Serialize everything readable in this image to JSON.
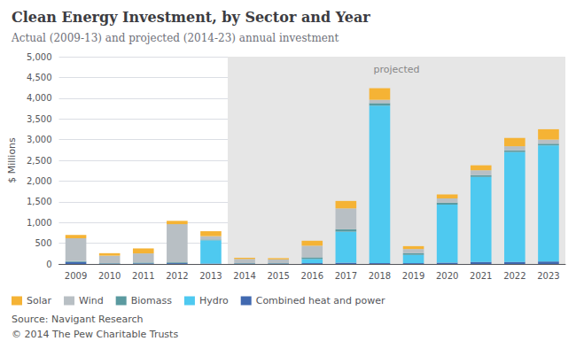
{
  "chart_data": {
    "type": "bar",
    "stacked": true,
    "title": "Clean Energy Investment, by Sector and Year",
    "subtitle": "Actual (2009-13) and projected (2014-23) annual investment",
    "ylabel": "$ Millions",
    "categories": [
      "2009",
      "2010",
      "2011",
      "2012",
      "2013",
      "2014",
      "2015",
      "2016",
      "2017",
      "2018",
      "2019",
      "2020",
      "2021",
      "2022",
      "2023"
    ],
    "series": [
      {
        "name": "Solar",
        "color": "#f5b335",
        "values": [
          80,
          60,
          120,
          80,
          120,
          30,
          30,
          120,
          180,
          280,
          70,
          100,
          120,
          200,
          250
        ]
      },
      {
        "name": "Wind",
        "color": "#b8bfc4",
        "values": [
          550,
          180,
          220,
          920,
          80,
          100,
          90,
          280,
          500,
          80,
          100,
          100,
          120,
          100,
          100
        ]
      },
      {
        "name": "Biomass",
        "color": "#5b9aa0",
        "values": [
          20,
          10,
          20,
          20,
          20,
          10,
          10,
          40,
          60,
          60,
          40,
          50,
          40,
          40,
          40
        ]
      },
      {
        "name": "Hydro",
        "color": "#4ec9f0",
        "values": [
          0,
          0,
          0,
          0,
          560,
          0,
          0,
          100,
          750,
          3800,
          200,
          1400,
          2050,
          2650,
          2800
        ]
      },
      {
        "name": "Combined heat and power",
        "color": "#4169b0",
        "values": [
          50,
          10,
          15,
          20,
          10,
          10,
          10,
          20,
          30,
          20,
          20,
          30,
          50,
          50,
          60
        ]
      }
    ],
    "ylim": [
      0,
      5000
    ],
    "yticks": [
      0,
      500,
      {
        "value": 1000,
        "label": "1,000"
      },
      {
        "value": 1500,
        "label": "1,500"
      },
      {
        "value": 2000,
        "label": "2,000"
      },
      {
        "value": 2500,
        "label": "2,500"
      },
      {
        "value": 3000,
        "label": "3,000"
      },
      {
        "value": 3500,
        "label": "3,500"
      },
      {
        "value": 4000,
        "label": "4,000"
      },
      {
        "value": 4500,
        "label": "4,500"
      },
      {
        "value": 5000,
        "label": "5,000"
      }
    ],
    "grid": true,
    "legend": "bottom",
    "annotations": [
      {
        "text": "projected",
        "from": "2014",
        "to": "2023",
        "y": 4700,
        "color": "#e6e6e6"
      }
    ],
    "footnotes": [
      "Source: Navigant Research",
      "© 2014 The Pew Charitable Trusts"
    ]
  }
}
